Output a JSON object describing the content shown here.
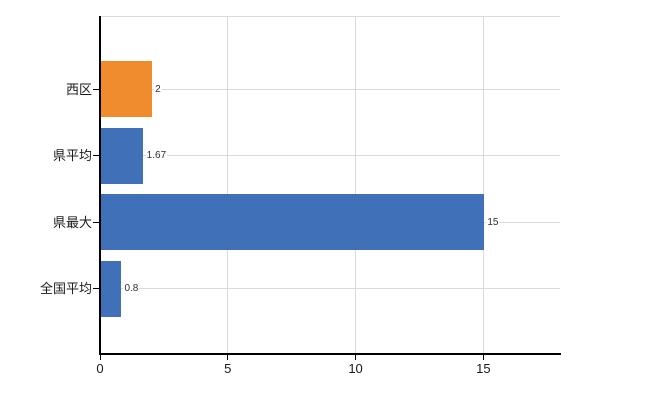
{
  "chart_data": {
    "type": "bar",
    "orientation": "horizontal",
    "title": "",
    "xlabel": "",
    "ylabel": "",
    "categories": [
      "西区",
      "県平均",
      "県最大",
      "全国平均"
    ],
    "values": [
      2,
      1.67,
      15,
      0.8
    ],
    "value_labels": [
      "2",
      "1.67",
      "15",
      "0.8"
    ],
    "bar_colors": [
      "#F08C2E",
      "#4071B8",
      "#4071B8",
      "#4071B8"
    ],
    "x_ticks": [
      0,
      5,
      10,
      15
    ],
    "x_tick_labels": [
      "0",
      "5",
      "10",
      "15"
    ],
    "xlim": [
      0,
      18
    ],
    "grid": true,
    "legend": false,
    "value_labels_shown": true
  },
  "colors": {
    "background": "#FFFFFF",
    "axis": "#000000",
    "gridline": "#DCDAD5",
    "tick_text": "#1A1A1A",
    "value_text": "#2E2E2E",
    "accent_orange": "#F08C2E",
    "accent_blue": "#4071B8"
  }
}
